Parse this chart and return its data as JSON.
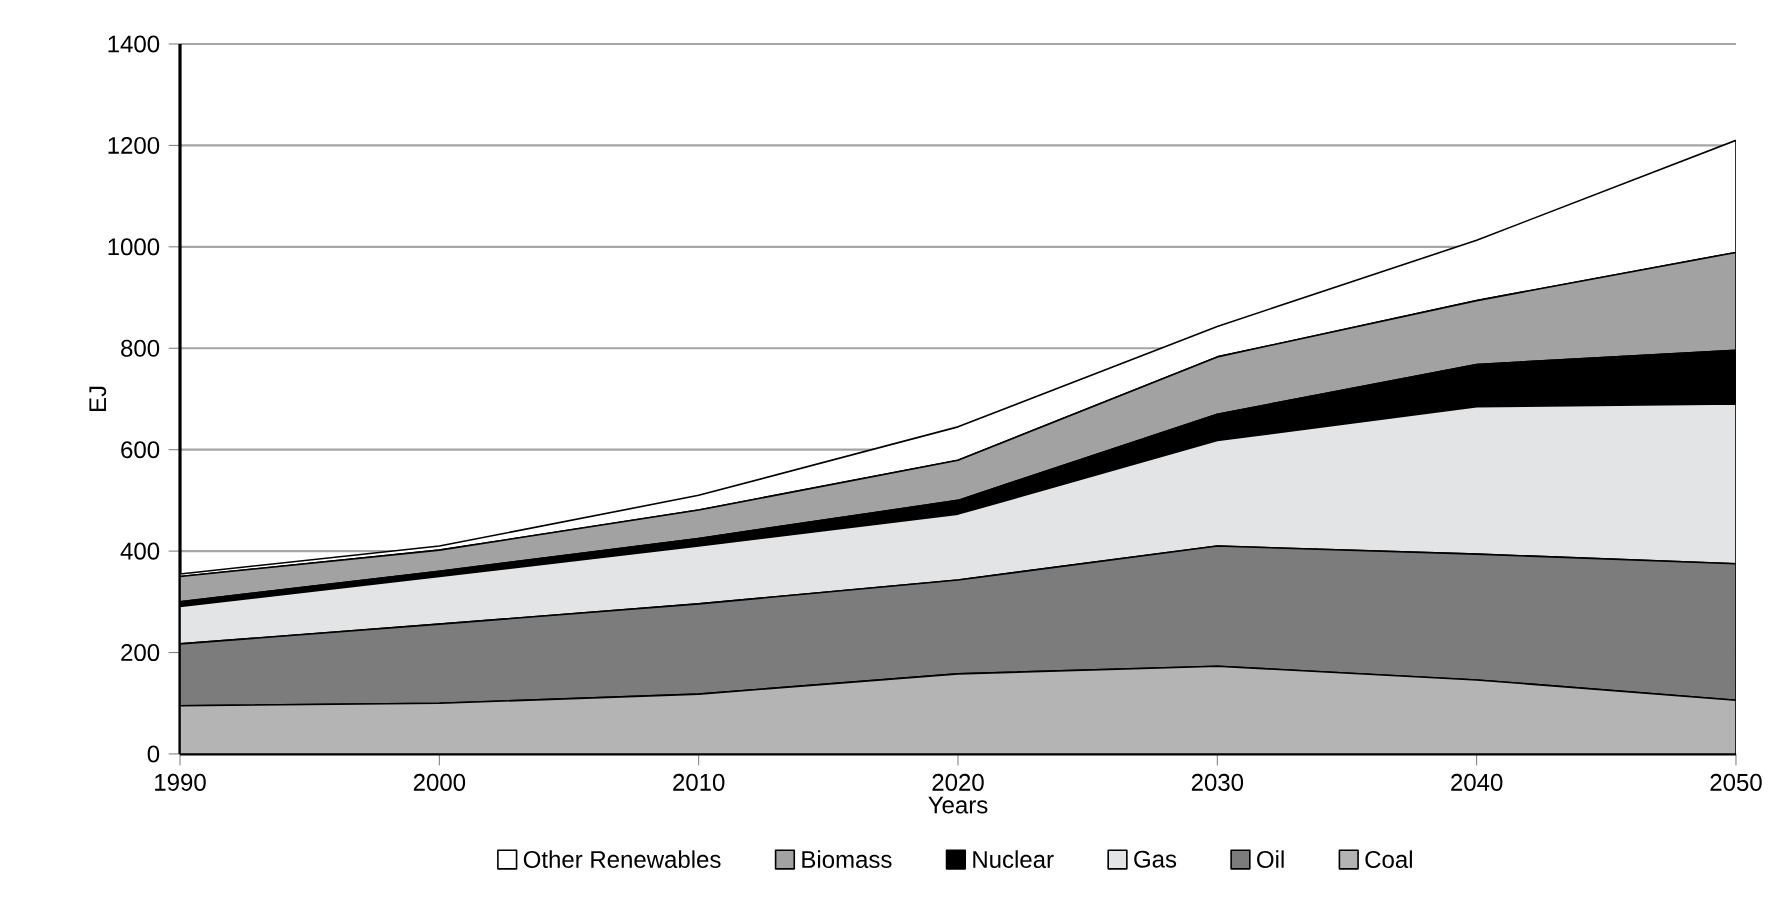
{
  "chart_data": {
    "type": "area",
    "stacked": true,
    "xlabel": "Years",
    "ylabel": "EJ",
    "x": [
      1990,
      2000,
      2010,
      2020,
      2030,
      2040,
      2050
    ],
    "series": [
      {
        "name": "Coal",
        "color": "#b4b4b4",
        "values": [
          95,
          100,
          118,
          158,
          173,
          146,
          106
        ]
      },
      {
        "name": "Oil",
        "color": "#7c7c7c",
        "values": [
          122,
          156,
          178,
          185,
          237,
          248,
          269
        ]
      },
      {
        "name": "Gas",
        "color": "#e2e4e6",
        "values": [
          74,
          94,
          114,
          130,
          208,
          291,
          315
        ]
      },
      {
        "name": "Nuclear",
        "color": "#000000",
        "values": [
          9,
          10,
          15,
          27,
          52,
          83,
          106
        ]
      },
      {
        "name": "Biomass",
        "color": "#a2a2a2",
        "values": [
          50,
          42,
          56,
          79,
          113,
          126,
          193
        ]
      },
      {
        "name": "Other Renewables",
        "color": "#ffffff",
        "values": [
          5,
          8,
          29,
          66,
          60,
          119,
          221
        ]
      }
    ],
    "xlim": [
      1990,
      2050
    ],
    "xticks": [
      1990,
      2000,
      2010,
      2020,
      2030,
      2040,
      2050
    ],
    "ylim": [
      0,
      1400
    ],
    "yticks": [
      0,
      200,
      400,
      600,
      800,
      1000,
      1200,
      1400
    ],
    "grid": "y",
    "legend": "bottom"
  }
}
